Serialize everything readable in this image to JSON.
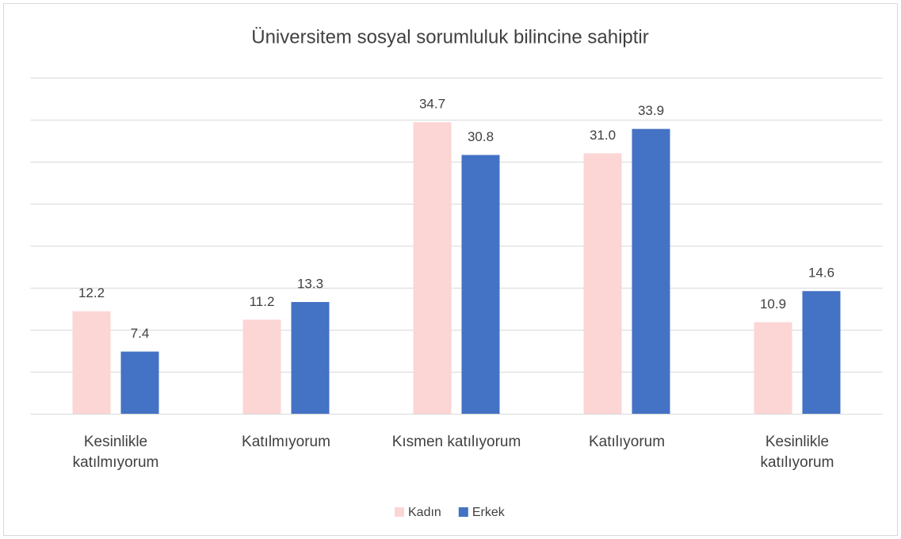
{
  "chart_data": {
    "type": "bar",
    "title": "Üniversitem sosyal sorumluluk bilincine sahiptir",
    "categories": [
      "Kesinlikle katılmıyorum",
      "Katılmıyorum",
      "Kısmen katılıyorum",
      "Katılıyorum",
      "Kesinlikle katılıyorum"
    ],
    "series": [
      {
        "name": "Kadın",
        "color": "#fcd5d5",
        "values": [
          12.2,
          11.2,
          34.7,
          31.0,
          10.9
        ],
        "value_labels": [
          "12.2",
          "11.2",
          "34.7",
          "31.0",
          "10.9"
        ]
      },
      {
        "name": "Erkek",
        "color": "#4472c4",
        "values": [
          7.4,
          13.3,
          30.8,
          33.9,
          14.6
        ],
        "value_labels": [
          "7.4",
          "13.3",
          "30.8",
          "33.9",
          "14.6"
        ]
      }
    ],
    "ylim": [
      0,
      40
    ],
    "yticks": [
      0,
      5,
      10,
      15,
      20,
      25,
      30,
      35,
      40
    ],
    "grid": true,
    "legend": "bottom"
  }
}
